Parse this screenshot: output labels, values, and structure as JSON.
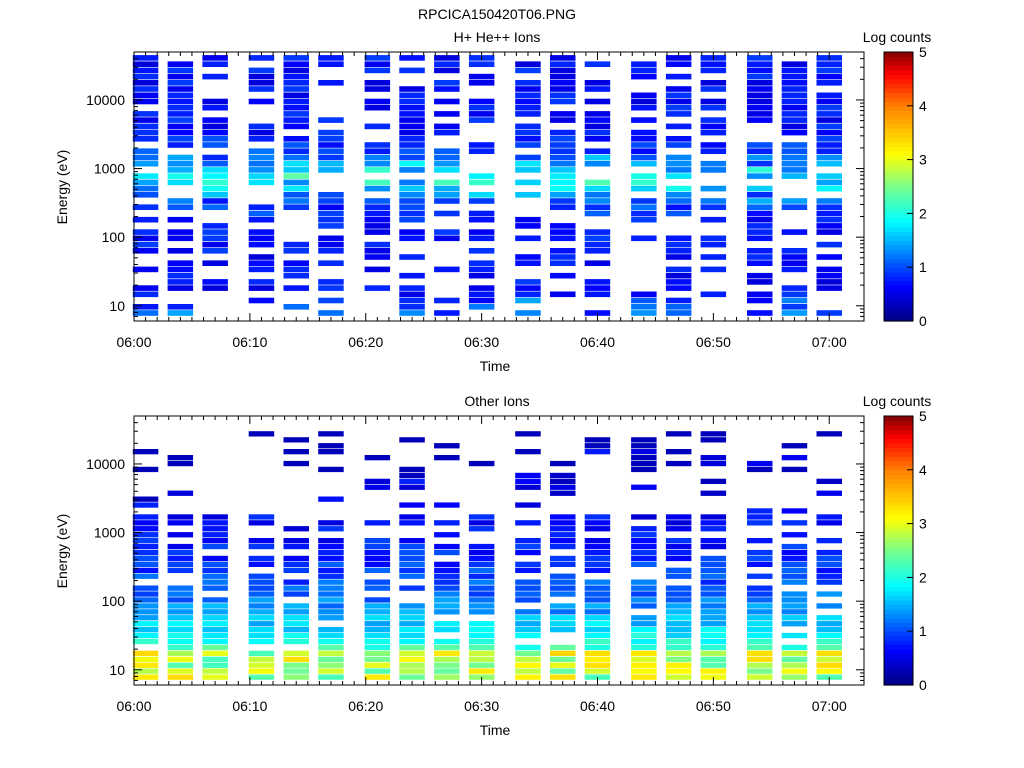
{
  "figure_title": "RPCICA150420T06.PNG",
  "chart_data": [
    {
      "type": "heatmap",
      "title": "H+ He++ Ions",
      "xlabel": "Time",
      "ylabel": "Energy (eV)",
      "x_ticks": [
        "06:00",
        "06:10",
        "06:20",
        "06:30",
        "06:40",
        "06:50",
        "07:00"
      ],
      "xlim": [
        "06:00",
        "07:03"
      ],
      "y_scale": "log",
      "y_ticks": [
        "10",
        "100",
        "1000",
        "10000"
      ],
      "ylim": [
        6,
        50000
      ],
      "colorbar": {
        "label": "Log counts",
        "range": [
          0,
          5
        ],
        "ticks": [
          "0",
          "1",
          "2",
          "3",
          "4",
          "5"
        ]
      },
      "time_bins": [
        "06:01",
        "06:04",
        "06:07",
        "06:11",
        "06:14",
        "06:17",
        "06:21",
        "06:24",
        "06:27",
        "06:30",
        "06:34",
        "06:37",
        "06:40",
        "06:44",
        "06:47",
        "06:50",
        "06:54",
        "06:57",
        "07:00"
      ],
      "profile": {
        "low_energy_log_counts": 1.0,
        "peak_energy_eV": 700,
        "peak_log_counts": 1.4,
        "high_energy_log_counts": 0.4,
        "max_energy_eV": 45000
      }
    },
    {
      "type": "heatmap",
      "title": "Other Ions",
      "xlabel": "Time",
      "ylabel": "Energy (eV)",
      "x_ticks": [
        "06:00",
        "06:10",
        "06:20",
        "06:30",
        "06:40",
        "06:50",
        "07:00"
      ],
      "xlim": [
        "06:00",
        "07:03"
      ],
      "y_scale": "log",
      "y_ticks": [
        "10",
        "100",
        "1000",
        "10000"
      ],
      "ylim": [
        6,
        50000
      ],
      "colorbar": {
        "label": "Log counts",
        "range": [
          0,
          5
        ],
        "ticks": [
          "0",
          "1",
          "2",
          "3",
          "4",
          "5"
        ]
      },
      "time_bins": [
        "06:01",
        "06:04",
        "06:07",
        "06:11",
        "06:14",
        "06:17",
        "06:21",
        "06:24",
        "06:27",
        "06:30",
        "06:34",
        "06:37",
        "06:40",
        "06:44",
        "06:47",
        "06:50",
        "06:54",
        "06:57",
        "07:00"
      ],
      "profile": {
        "low_energy_log_counts": 3.0,
        "peak_energy_eV": 10,
        "peak_log_counts": 3.0,
        "high_energy_log_counts": 0.2,
        "max_energy_eV": 30000
      }
    }
  ]
}
